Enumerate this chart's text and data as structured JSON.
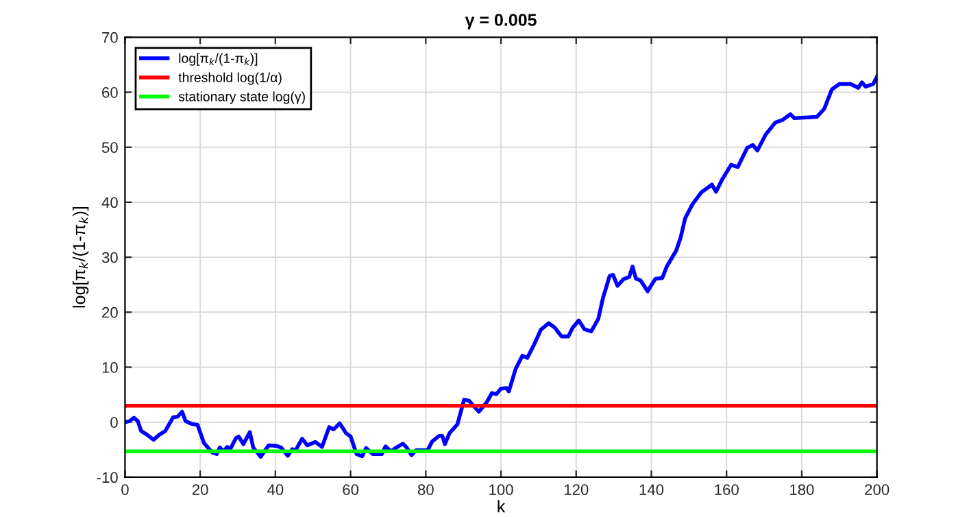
{
  "chart_data": {
    "type": "line",
    "title": "γ = 0.005",
    "xlabel": "k",
    "ylabel": "log[π$_{k}$/(1-π$_{k}$)]",
    "series": [
      {
        "name": "log[π$_{k}$/(1-π$_{k}$)]",
        "color": "#0000ff",
        "x": [
          0,
          1.2,
          2.4,
          3.4,
          4.3,
          5.9,
          7.6,
          9.1,
          10.7,
          12.8,
          14,
          15.2,
          16.1,
          17.7,
          19.3,
          21,
          23.2,
          24.4,
          25.2,
          26.2,
          27.2,
          28,
          29.5,
          30.2,
          31.5,
          33.2,
          34.1,
          36.1,
          38.2,
          40.2,
          41.5,
          43.3,
          44.5,
          45.4,
          47.1,
          48.5,
          50.6,
          52.4,
          54.3,
          55.5,
          57.1,
          58.8,
          60,
          61.6,
          63.1,
          64.1,
          65.9,
          68.3,
          69.3,
          70.7,
          72.2,
          73.9,
          74.9,
          76.2,
          77.4,
          80.5,
          81.7,
          83.5,
          84.4,
          85.1,
          86.3,
          88.4,
          90.2,
          91.5,
          94.1,
          96.1,
          97.6,
          98.8,
          100,
          101.5,
          102.1,
          103.9,
          105.7,
          107,
          108.8,
          110.6,
          112.7,
          114.3,
          116.1,
          117.9,
          119.1,
          120.7,
          122.2,
          124,
          125.9,
          127.1,
          128.9,
          129.8,
          131,
          132.6,
          134.1,
          135,
          135.9,
          137.1,
          139,
          141.1,
          142.9,
          144.1,
          146.6,
          147.8,
          149,
          150.9,
          153.3,
          156.1,
          157.2,
          158.8,
          161.2,
          163,
          165.5,
          167,
          168.2,
          170.4,
          173,
          175,
          177,
          178,
          184,
          186,
          188,
          190,
          193,
          195,
          196,
          197,
          199,
          200
        ],
        "values": [
          0,
          0.2,
          0.8,
          0.2,
          -1.6,
          -2.3,
          -3.2,
          -2.3,
          -1.6,
          0.9,
          1.0,
          1.9,
          0.2,
          -0.3,
          -0.5,
          -3.8,
          -5.5,
          -5.8,
          -4.6,
          -5.3,
          -4.5,
          -4.9,
          -2.9,
          -2.6,
          -4.0,
          -1.8,
          -4.6,
          -6.3,
          -4.2,
          -4.3,
          -4.6,
          -6.1,
          -4.9,
          -5.1,
          -3.0,
          -4.2,
          -3.6,
          -4.5,
          -0.9,
          -1.3,
          -0.2,
          -2.0,
          -2.6,
          -5.8,
          -6.2,
          -4.7,
          -5.8,
          -5.8,
          -4.4,
          -5.3,
          -4.6,
          -3.9,
          -4.6,
          -6.0,
          -5.1,
          -5.1,
          -3.5,
          -2.5,
          -2.5,
          -4.0,
          -2.0,
          -0.4,
          4.1,
          3.9,
          1.9,
          3.5,
          5.3,
          5.1,
          6.1,
          6.2,
          5.6,
          9.7,
          12.1,
          11.7,
          14.1,
          16.8,
          18.0,
          17.2,
          15.6,
          15.6,
          17.2,
          18.5,
          16.9,
          16.5,
          18.8,
          22.5,
          26.6,
          26.8,
          24.8,
          26.0,
          26.4,
          28.3,
          26.1,
          25.8,
          23.8,
          26.1,
          26.2,
          28.3,
          31.2,
          33.6,
          37.1,
          39.6,
          41.8,
          43.2,
          41.9,
          44.1,
          46.8,
          46.4,
          49.9,
          50.4,
          49.4,
          52.3,
          54.5,
          55,
          56,
          55.3,
          55.5,
          57,
          60.5,
          61.5,
          61.5,
          60.8,
          61.8,
          61,
          61.5,
          62.8
        ]
      }
    ],
    "ref_lines": [
      {
        "axis": "y",
        "value": 3,
        "label": "threshold log(1/α)",
        "color": "#ff0000"
      },
      {
        "axis": "y",
        "value": -5.3,
        "label": "stationary state log(γ)",
        "color": "#00ff00"
      }
    ],
    "xlim": [
      0,
      200
    ],
    "ylim": [
      -10,
      70
    ],
    "xticks": [
      0,
      20,
      40,
      60,
      80,
      100,
      120,
      140,
      160,
      180,
      200
    ],
    "yticks": [
      -10,
      0,
      10,
      20,
      30,
      40,
      50,
      60,
      70
    ],
    "grid": true,
    "legend": "top left",
    "line_style": "solid"
  }
}
